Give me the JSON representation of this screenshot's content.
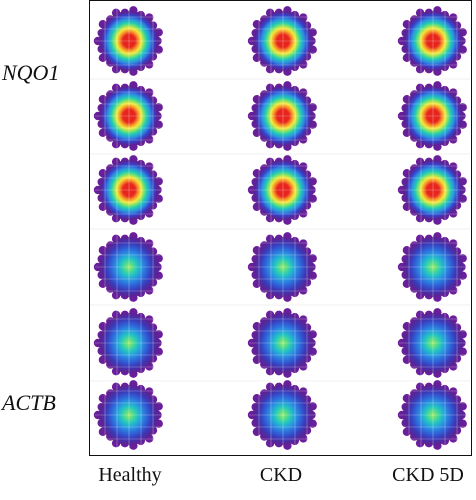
{
  "row_labels": {
    "nqo1": "NQO1",
    "actb": "ACTB"
  },
  "column_labels": [
    "Healthy",
    "CKD",
    "CKD 5D"
  ],
  "rows": [
    {
      "gene": "NQO1",
      "intensity": "high"
    },
    {
      "gene": "NQO1",
      "intensity": "high"
    },
    {
      "gene": "NQO1",
      "intensity": "high"
    },
    {
      "gene": "ACTB",
      "intensity": "low"
    },
    {
      "gene": "ACTB",
      "intensity": "low"
    },
    {
      "gene": "ACTB",
      "intensity": "low"
    }
  ],
  "colormap": [
    "#4b1a86",
    "#7a1a9e",
    "#3344cc",
    "#2f8fe0",
    "#20c9b8",
    "#7be36a",
    "#f2e83a",
    "#f59a2a",
    "#e8241e"
  ]
}
